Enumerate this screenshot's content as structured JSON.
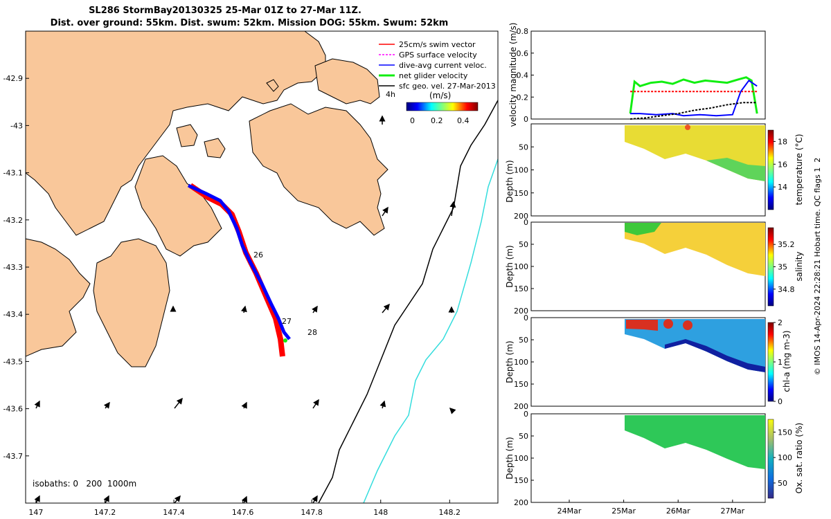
{
  "title": {
    "line1": "SL286 StormBay20130325 25-Mar 01Z to 27-Mar 11Z.",
    "line2": "Dist. over ground: 55km. Dist. swum: 52km. Mission DOG: 55km. Swum: 52km"
  },
  "credit": "© IMOS 14-Apr-2024 22:28:21 Hobart time. QC flags 1  2",
  "colors": {
    "land": "#F9C79A",
    "track_red": "#ff0000",
    "track_blue": "#0000ff",
    "isobath_200": "#000000",
    "isobath_1000": "#33dddd",
    "green": "#11ee11",
    "black": "#000000"
  },
  "chart_data": [
    {
      "type": "map",
      "x_ticks": [
        "147",
        "147.2",
        "147.4",
        "147.6",
        "147.8",
        "148",
        "148.2"
      ],
      "y_ticks": [
        "-42.9",
        "-43",
        "-43.1",
        "-43.2",
        "-43.3",
        "-43.4",
        "-43.5",
        "-43.6",
        "-43.7"
      ],
      "xlim": [
        146.97,
        148.34
      ],
      "ylim": [
        -43.8,
        -42.8
      ],
      "legend": {
        "items": [
          {
            "label": "25cm/s swim vector",
            "color": "#ff0000"
          },
          {
            "label": "GPS surface velocity",
            "color": "#ff00ff"
          },
          {
            "label": "dive-avg current veloc.",
            "color": "#0000ff"
          },
          {
            "label": "net glider velocity",
            "color": "#11ee11"
          },
          {
            "label": "sfc geo. vel. 27-Mar-2013",
            "color": "#000000"
          }
        ],
        "age_label": "4h",
        "colorbar_title": "(m/s)",
        "colorbar_ticks": [
          "0",
          "0.2",
          "0.4"
        ]
      },
      "day_labels": [
        "26",
        "27",
        "28"
      ],
      "isobaths_label": "isobaths: 0   200  1000m"
    },
    {
      "type": "line",
      "ylabel": "velocity magnitude (m/s)",
      "ylim": [
        0,
        0.8
      ],
      "y_ticks": [
        "0",
        "0.2",
        "0.4",
        "0.6",
        "0.8"
      ],
      "series": [
        {
          "color": "#11ee11",
          "x": [
            25.12,
            25.2,
            25.3,
            25.5,
            25.7,
            25.9,
            26.1,
            26.3,
            26.5,
            26.7,
            26.9,
            27.1,
            27.25,
            27.35,
            27.45
          ],
          "values": [
            0.05,
            0.34,
            0.3,
            0.33,
            0.34,
            0.32,
            0.36,
            0.33,
            0.35,
            0.34,
            0.33,
            0.36,
            0.38,
            0.35,
            0.05
          ]
        },
        {
          "color": "#ff0000",
          "x": [
            25.12,
            27.45
          ],
          "values": [
            0.25,
            0.25
          ]
        },
        {
          "color": "#0000ff",
          "x": [
            25.12,
            25.3,
            25.6,
            25.9,
            26.1,
            26.4,
            26.7,
            27.0,
            27.15,
            27.3,
            27.45
          ],
          "values": [
            0.05,
            0.05,
            0.04,
            0.05,
            0.03,
            0.04,
            0.03,
            0.04,
            0.25,
            0.35,
            0.3
          ]
        },
        {
          "color": "#000000",
          "x": [
            25.12,
            25.4,
            25.7,
            26.0,
            26.3,
            26.6,
            26.9,
            27.2,
            27.45
          ],
          "values": [
            0.0,
            0.01,
            0.03,
            0.05,
            0.08,
            0.1,
            0.13,
            0.15,
            0.15
          ]
        }
      ]
    },
    {
      "type": "heatmap",
      "ylabel": "Depth (m)",
      "cbar_label": "temperature (°C)",
      "ylim": [
        200,
        0
      ],
      "y_ticks": [
        "50",
        "100",
        "150",
        "200"
      ],
      "cbar_ticks": [
        "14",
        "16",
        "18"
      ]
    },
    {
      "type": "heatmap",
      "ylabel": "Depth (m)",
      "cbar_label": "salinity",
      "ylim": [
        200,
        0
      ],
      "y_ticks": [
        "0",
        "50",
        "100",
        "150",
        "200"
      ],
      "cbar_ticks": [
        "34.8",
        "35",
        "35.2"
      ]
    },
    {
      "type": "heatmap",
      "ylabel": "Depth (m)",
      "cbar_label": "chl-a (mg m-3)",
      "ylim": [
        200,
        0
      ],
      "y_ticks": [
        "0",
        "50",
        "100",
        "150",
        "200"
      ],
      "cbar_ticks": [
        "0",
        "1",
        "2"
      ]
    },
    {
      "type": "heatmap",
      "ylabel": "Depth (m)",
      "cbar_label": "Ox. sat. ratio (%)",
      "ylim": [
        200,
        0
      ],
      "y_ticks": [
        "0",
        "50",
        "100",
        "150",
        "200"
      ],
      "cbar_ticks": [
        "50",
        "100",
        "150"
      ],
      "x_ticks": [
        "24Mar",
        "25Mar",
        "26Mar",
        "27Mar"
      ]
    }
  ]
}
